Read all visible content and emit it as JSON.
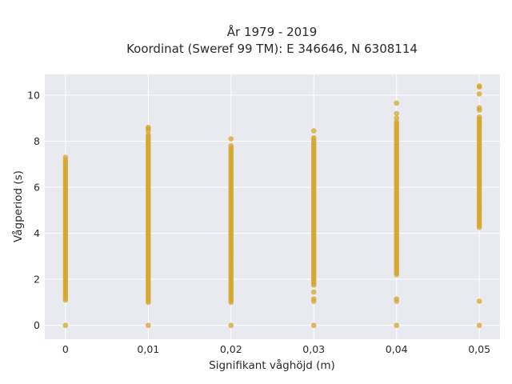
{
  "chart_data": {
    "type": "scatter",
    "title_line1": "År 1979 - 2019",
    "title_line2": "Koordinat (Sweref 99 TM): E 346646, N 6308114",
    "xlabel": "Signifikant våghöjd (m)",
    "ylabel": "Vågperiod (s)",
    "x_ticks": [
      "0",
      "0,01",
      "0,02",
      "0,03",
      "0,04",
      "0,05"
    ],
    "x_tick_values": [
      0,
      0.01,
      0.02,
      0.03,
      0.04,
      0.05
    ],
    "y_ticks": [
      "0",
      "2",
      "4",
      "6",
      "8",
      "10"
    ],
    "y_tick_values": [
      0,
      2,
      4,
      6,
      8,
      10
    ],
    "xlim": [
      -0.0025,
      0.0525
    ],
    "ylim": [
      -0.6,
      10.9
    ],
    "grid": true,
    "color": "#d4a52a",
    "series": [
      {
        "x": 0.0,
        "continuous": [
          1.1,
          7.2
        ],
        "points": [
          0.0,
          7.3
        ]
      },
      {
        "x": 0.01,
        "continuous": [
          1.0,
          8.3
        ],
        "points": [
          0.0,
          8.45,
          8.55,
          8.6
        ]
      },
      {
        "x": 0.02,
        "continuous": [
          1.0,
          7.85
        ],
        "points": [
          0.0,
          8.1
        ]
      },
      {
        "x": 0.03,
        "continuous": [
          1.75,
          8.2
        ],
        "points": [
          0.0,
          1.05,
          1.15,
          1.45,
          8.45
        ]
      },
      {
        "x": 0.04,
        "continuous": [
          2.2,
          8.85
        ],
        "points": [
          0.0,
          1.05,
          1.15,
          9.0,
          9.2,
          9.65
        ]
      },
      {
        "x": 0.05,
        "continuous": [
          4.25,
          9.1
        ],
        "points": [
          0.0,
          1.05,
          9.35,
          9.45,
          10.05,
          10.35,
          10.4
        ]
      }
    ]
  }
}
